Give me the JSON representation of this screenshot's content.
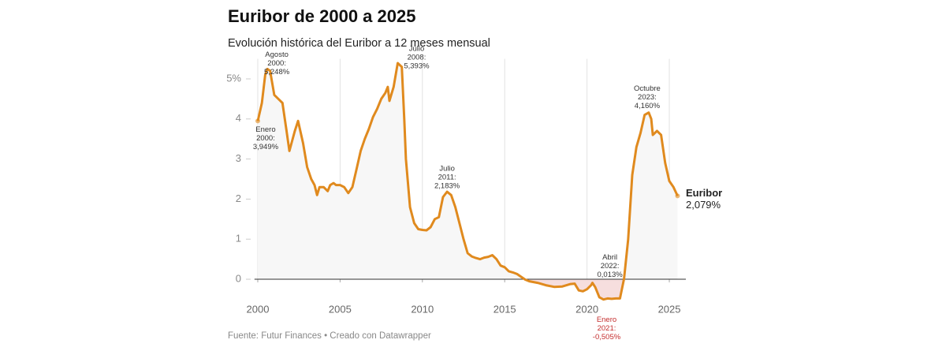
{
  "chart_data": {
    "type": "line",
    "title": "Euribor de 2000 a 2025",
    "subtitle": "Evolución histórica del Euribor a 12 meses mensual",
    "source": "Fuente: Futur Finances • Creado con Datawrapper",
    "x": [
      2000.0,
      2000.25,
      2000.45,
      2000.58,
      2000.75,
      2001.0,
      2001.25,
      2001.5,
      2001.75,
      2001.92,
      2002.25,
      2002.45,
      2002.75,
      2003.0,
      2003.25,
      2003.45,
      2003.6,
      2003.75,
      2004.0,
      2004.25,
      2004.4,
      2004.6,
      2004.75,
      2005.0,
      2005.25,
      2005.5,
      2005.75,
      2006.0,
      2006.25,
      2006.5,
      2006.75,
      2007.0,
      2007.25,
      2007.5,
      2007.75,
      2007.9,
      2008.0,
      2008.25,
      2008.5,
      2008.75,
      2008.9,
      2009.0,
      2009.25,
      2009.5,
      2009.75,
      2010.0,
      2010.25,
      2010.5,
      2010.75,
      2011.0,
      2011.25,
      2011.5,
      2011.75,
      2012.0,
      2012.25,
      2012.5,
      2012.75,
      2013.0,
      2013.25,
      2013.5,
      2013.75,
      2014.0,
      2014.25,
      2014.5,
      2014.75,
      2015.0,
      2015.25,
      2015.5,
      2015.75,
      2016.0,
      2016.25,
      2016.5,
      2016.75,
      2017.0,
      2017.5,
      2018.0,
      2018.5,
      2019.0,
      2019.25,
      2019.5,
      2019.75,
      2020.0,
      2020.25,
      2020.33,
      2020.5,
      2020.75,
      2021.0,
      2021.25,
      2021.5,
      2021.75,
      2022.0,
      2022.25,
      2022.5,
      2022.75,
      2023.0,
      2023.25,
      2023.5,
      2023.75,
      2023.9,
      2024.0,
      2024.25,
      2024.5,
      2024.75,
      2025.0,
      2025.25,
      2025.5
    ],
    "series": [
      {
        "name": "Euribor",
        "color": "#e08a1e",
        "last_label": "2,079%",
        "values": [
          3.949,
          4.4,
          5.1,
          5.248,
          5.2,
          4.6,
          4.5,
          4.4,
          3.7,
          3.2,
          3.7,
          3.95,
          3.4,
          2.8,
          2.5,
          2.35,
          2.1,
          2.3,
          2.3,
          2.2,
          2.35,
          2.4,
          2.35,
          2.35,
          2.3,
          2.15,
          2.3,
          2.75,
          3.2,
          3.5,
          3.75,
          4.05,
          4.25,
          4.5,
          4.65,
          4.8,
          4.45,
          4.8,
          5.393,
          5.3,
          4.0,
          3.0,
          1.8,
          1.4,
          1.25,
          1.23,
          1.22,
          1.3,
          1.5,
          1.55,
          2.05,
          2.183,
          2.1,
          1.8,
          1.4,
          1.0,
          0.65,
          0.57,
          0.53,
          0.5,
          0.54,
          0.56,
          0.6,
          0.5,
          0.34,
          0.3,
          0.2,
          0.17,
          0.13,
          0.06,
          -0.01,
          -0.05,
          -0.07,
          -0.09,
          -0.15,
          -0.19,
          -0.18,
          -0.12,
          -0.11,
          -0.28,
          -0.3,
          -0.25,
          -0.15,
          -0.09,
          -0.2,
          -0.45,
          -0.505,
          -0.48,
          -0.49,
          -0.48,
          -0.48,
          0.013,
          0.99,
          2.6,
          3.3,
          3.65,
          4.1,
          4.16,
          4.0,
          3.6,
          3.7,
          3.6,
          2.9,
          2.45,
          2.3,
          2.079
        ]
      }
    ],
    "xlim": [
      1999.8,
      2026.1
    ],
    "xticks": [
      2000,
      2005,
      2010,
      2015,
      2020,
      2025
    ],
    "ylim": [
      -0.6,
      5.5
    ],
    "yticks": [
      0,
      1,
      2,
      3,
      4,
      {
        "value": 5,
        "label": "5%"
      }
    ],
    "xgrid": true,
    "annotations": [
      {
        "lines": [
          "Enero",
          "2000:",
          "3,949%"
        ],
        "x": 2000.0,
        "y": 3.949,
        "color": "#333333"
      },
      {
        "lines": [
          "Agosto",
          "2000:",
          "5,248%"
        ],
        "x": 2000.58,
        "y": 5.248,
        "color": "#333333"
      },
      {
        "lines": [
          "Julio",
          "2008:",
          "5,393%"
        ],
        "x": 2008.5,
        "y": 5.393,
        "color": "#333333"
      },
      {
        "lines": [
          "Julio",
          "2011:",
          "2,183%"
        ],
        "x": 2011.5,
        "y": 2.183,
        "color": "#333333"
      },
      {
        "lines": [
          "Abril",
          "2022:",
          "0,013%"
        ],
        "x": 2022.25,
        "y": 0.013,
        "color": "#333333"
      },
      {
        "lines": [
          "Enero",
          "2021:",
          "-0,505%"
        ],
        "x": 2021.0,
        "y": -0.505,
        "color": "#c42e2e"
      },
      {
        "lines": [
          "Octubre",
          "2023:",
          "4,160%"
        ],
        "x": 2023.75,
        "y": 4.16,
        "color": "#333333"
      }
    ]
  }
}
